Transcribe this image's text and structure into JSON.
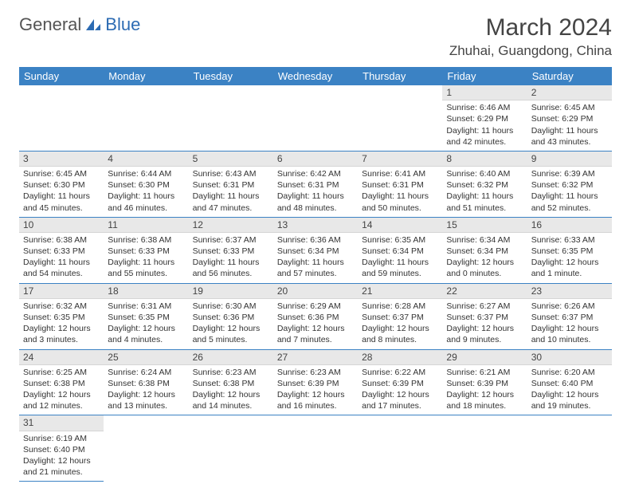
{
  "logo": {
    "text1": "General",
    "text2": "Blue"
  },
  "title": "March 2024",
  "location": "Zhuhai, Guangdong, China",
  "colors": {
    "header_bg": "#3b82c4",
    "header_fg": "#ffffff",
    "daynum_bg": "#e8e8e8",
    "row_border": "#3b82c4"
  },
  "weekdays": [
    "Sunday",
    "Monday",
    "Tuesday",
    "Wednesday",
    "Thursday",
    "Friday",
    "Saturday"
  ],
  "first_weekday_index": 5,
  "days": [
    {
      "n": 1,
      "sunrise": "6:46 AM",
      "sunset": "6:29 PM",
      "daylight": "11 hours and 42 minutes."
    },
    {
      "n": 2,
      "sunrise": "6:45 AM",
      "sunset": "6:29 PM",
      "daylight": "11 hours and 43 minutes."
    },
    {
      "n": 3,
      "sunrise": "6:45 AM",
      "sunset": "6:30 PM",
      "daylight": "11 hours and 45 minutes."
    },
    {
      "n": 4,
      "sunrise": "6:44 AM",
      "sunset": "6:30 PM",
      "daylight": "11 hours and 46 minutes."
    },
    {
      "n": 5,
      "sunrise": "6:43 AM",
      "sunset": "6:31 PM",
      "daylight": "11 hours and 47 minutes."
    },
    {
      "n": 6,
      "sunrise": "6:42 AM",
      "sunset": "6:31 PM",
      "daylight": "11 hours and 48 minutes."
    },
    {
      "n": 7,
      "sunrise": "6:41 AM",
      "sunset": "6:31 PM",
      "daylight": "11 hours and 50 minutes."
    },
    {
      "n": 8,
      "sunrise": "6:40 AM",
      "sunset": "6:32 PM",
      "daylight": "11 hours and 51 minutes."
    },
    {
      "n": 9,
      "sunrise": "6:39 AM",
      "sunset": "6:32 PM",
      "daylight": "11 hours and 52 minutes."
    },
    {
      "n": 10,
      "sunrise": "6:38 AM",
      "sunset": "6:33 PM",
      "daylight": "11 hours and 54 minutes."
    },
    {
      "n": 11,
      "sunrise": "6:38 AM",
      "sunset": "6:33 PM",
      "daylight": "11 hours and 55 minutes."
    },
    {
      "n": 12,
      "sunrise": "6:37 AM",
      "sunset": "6:33 PM",
      "daylight": "11 hours and 56 minutes."
    },
    {
      "n": 13,
      "sunrise": "6:36 AM",
      "sunset": "6:34 PM",
      "daylight": "11 hours and 57 minutes."
    },
    {
      "n": 14,
      "sunrise": "6:35 AM",
      "sunset": "6:34 PM",
      "daylight": "11 hours and 59 minutes."
    },
    {
      "n": 15,
      "sunrise": "6:34 AM",
      "sunset": "6:34 PM",
      "daylight": "12 hours and 0 minutes."
    },
    {
      "n": 16,
      "sunrise": "6:33 AM",
      "sunset": "6:35 PM",
      "daylight": "12 hours and 1 minute."
    },
    {
      "n": 17,
      "sunrise": "6:32 AM",
      "sunset": "6:35 PM",
      "daylight": "12 hours and 3 minutes."
    },
    {
      "n": 18,
      "sunrise": "6:31 AM",
      "sunset": "6:35 PM",
      "daylight": "12 hours and 4 minutes."
    },
    {
      "n": 19,
      "sunrise": "6:30 AM",
      "sunset": "6:36 PM",
      "daylight": "12 hours and 5 minutes."
    },
    {
      "n": 20,
      "sunrise": "6:29 AM",
      "sunset": "6:36 PM",
      "daylight": "12 hours and 7 minutes."
    },
    {
      "n": 21,
      "sunrise": "6:28 AM",
      "sunset": "6:37 PM",
      "daylight": "12 hours and 8 minutes."
    },
    {
      "n": 22,
      "sunrise": "6:27 AM",
      "sunset": "6:37 PM",
      "daylight": "12 hours and 9 minutes."
    },
    {
      "n": 23,
      "sunrise": "6:26 AM",
      "sunset": "6:37 PM",
      "daylight": "12 hours and 10 minutes."
    },
    {
      "n": 24,
      "sunrise": "6:25 AM",
      "sunset": "6:38 PM",
      "daylight": "12 hours and 12 minutes."
    },
    {
      "n": 25,
      "sunrise": "6:24 AM",
      "sunset": "6:38 PM",
      "daylight": "12 hours and 13 minutes."
    },
    {
      "n": 26,
      "sunrise": "6:23 AM",
      "sunset": "6:38 PM",
      "daylight": "12 hours and 14 minutes."
    },
    {
      "n": 27,
      "sunrise": "6:23 AM",
      "sunset": "6:39 PM",
      "daylight": "12 hours and 16 minutes."
    },
    {
      "n": 28,
      "sunrise": "6:22 AM",
      "sunset": "6:39 PM",
      "daylight": "12 hours and 17 minutes."
    },
    {
      "n": 29,
      "sunrise": "6:21 AM",
      "sunset": "6:39 PM",
      "daylight": "12 hours and 18 minutes."
    },
    {
      "n": 30,
      "sunrise": "6:20 AM",
      "sunset": "6:40 PM",
      "daylight": "12 hours and 19 minutes."
    },
    {
      "n": 31,
      "sunrise": "6:19 AM",
      "sunset": "6:40 PM",
      "daylight": "12 hours and 21 minutes."
    }
  ],
  "labels": {
    "sunrise": "Sunrise:",
    "sunset": "Sunset:",
    "daylight": "Daylight:"
  }
}
